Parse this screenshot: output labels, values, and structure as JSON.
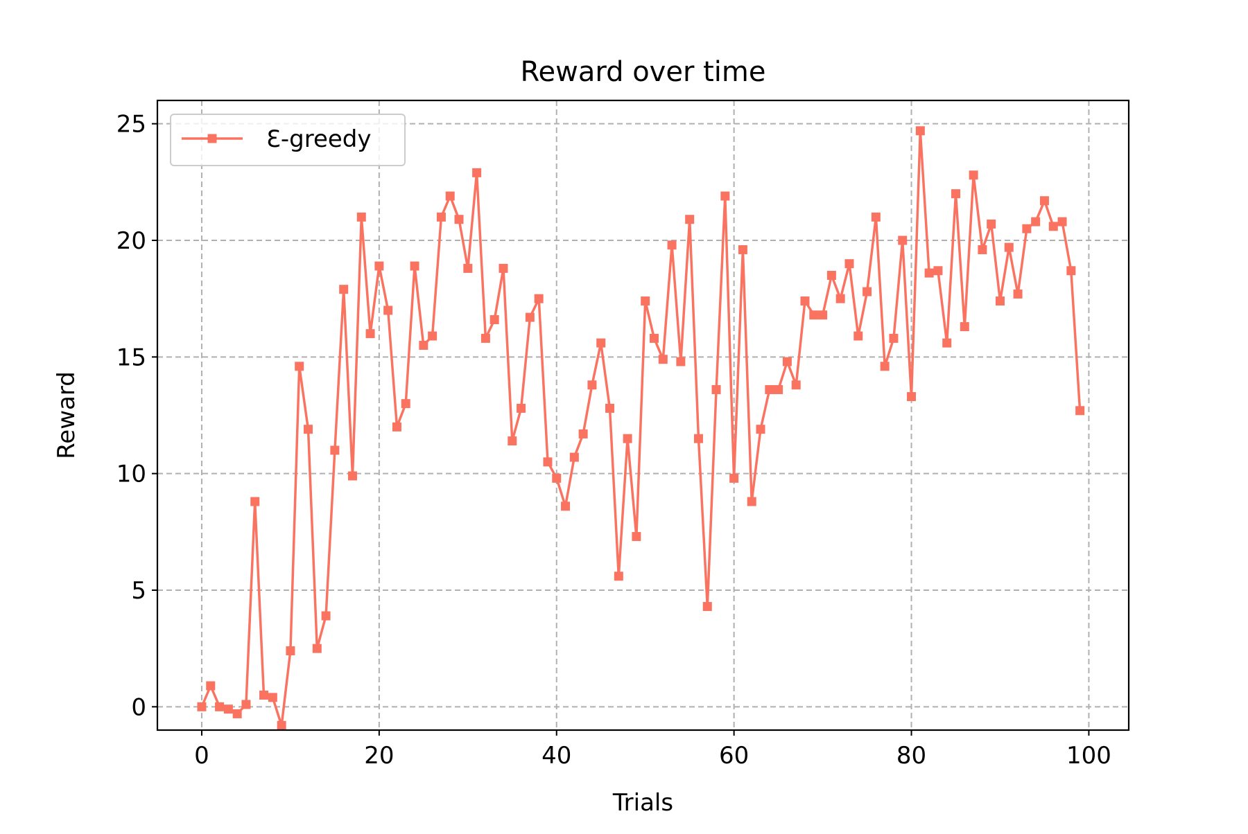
{
  "chart_data": {
    "type": "line",
    "title": "Reward over time",
    "xlabel": "Trials",
    "ylabel": "Reward",
    "xlim": [
      -5,
      104.5
    ],
    "ylim": [
      -1,
      26
    ],
    "xticks": [
      0,
      20,
      40,
      60,
      80,
      100
    ],
    "yticks": [
      0,
      5,
      10,
      15,
      20,
      25
    ],
    "grid": true,
    "legend_position": "upper-left",
    "series": [
      {
        "name": "Ɛ-greedy",
        "color": "#FA7361",
        "marker": "square",
        "x": [
          0,
          1,
          2,
          3,
          4,
          5,
          6,
          7,
          8,
          9,
          10,
          11,
          12,
          13,
          14,
          15,
          16,
          17,
          18,
          19,
          20,
          21,
          22,
          23,
          24,
          25,
          26,
          27,
          28,
          29,
          30,
          31,
          32,
          33,
          34,
          35,
          36,
          37,
          38,
          39,
          40,
          41,
          42,
          43,
          44,
          45,
          46,
          47,
          48,
          49,
          50,
          51,
          52,
          53,
          54,
          55,
          56,
          57,
          58,
          59,
          60,
          61,
          62,
          63,
          64,
          65,
          66,
          67,
          68,
          69,
          70,
          71,
          72,
          73,
          74,
          75,
          76,
          77,
          78,
          79,
          80,
          81,
          82,
          83,
          84,
          85,
          86,
          87,
          88,
          89,
          90,
          91,
          92,
          93,
          94,
          95,
          96,
          97,
          98,
          99
        ],
        "values": [
          0.0,
          0.9,
          0.0,
          -0.1,
          -0.3,
          0.1,
          8.8,
          0.5,
          0.4,
          -0.8,
          2.4,
          14.6,
          11.9,
          2.5,
          3.9,
          11.0,
          17.9,
          9.9,
          21.0,
          16.0,
          18.9,
          17.0,
          12.0,
          13.0,
          18.9,
          15.5,
          15.9,
          21.0,
          21.9,
          20.9,
          18.8,
          22.9,
          15.8,
          16.6,
          18.8,
          11.4,
          12.8,
          16.7,
          17.5,
          10.5,
          9.8,
          8.6,
          10.7,
          11.7,
          13.8,
          15.6,
          12.8,
          5.6,
          11.5,
          7.3,
          17.4,
          15.8,
          14.9,
          19.8,
          14.8,
          20.9,
          11.5,
          4.3,
          13.6,
          21.9,
          9.8,
          19.6,
          8.8,
          11.9,
          13.6,
          13.6,
          14.8,
          13.8,
          17.4,
          16.8,
          16.8,
          18.5,
          17.5,
          19.0,
          15.9,
          17.8,
          21.0,
          14.6,
          15.8,
          20.0,
          13.3,
          24.7,
          18.6,
          18.7,
          15.6,
          22.0,
          16.3,
          22.8,
          19.6,
          20.7,
          17.4,
          19.7,
          17.7,
          20.5,
          20.8,
          21.7,
          20.6,
          20.8,
          18.7,
          12.7
        ]
      }
    ]
  }
}
